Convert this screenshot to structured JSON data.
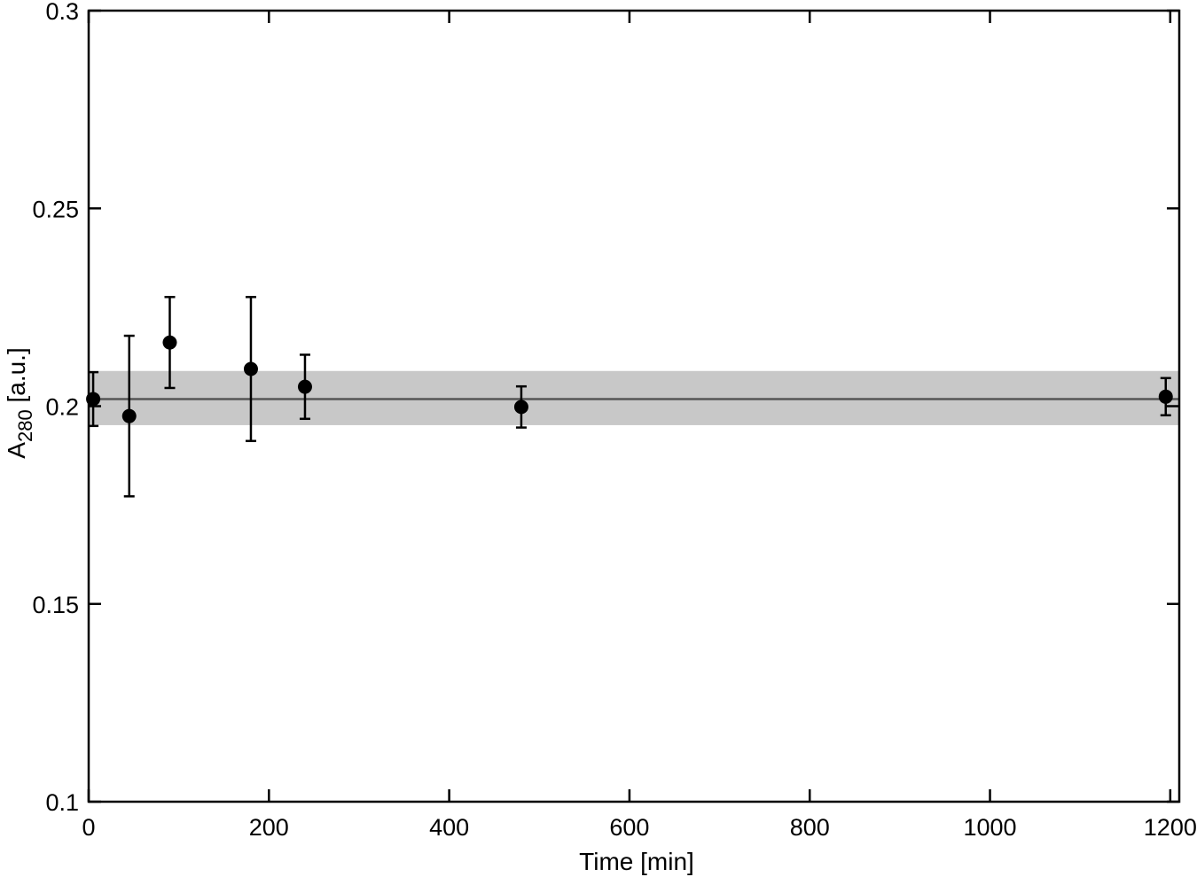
{
  "chart_data": {
    "type": "scatter",
    "title": "",
    "xlabel": "Time [min]",
    "ylabel_main": "A",
    "ylabel_sub": "280",
    "ylabel_unit": " [a.u.]",
    "xlim": [
      0,
      1210
    ],
    "ylim": [
      0.1,
      0.3
    ],
    "xticks": [
      0,
      200,
      400,
      600,
      800,
      1000,
      1200
    ],
    "xtick_labels": [
      "0",
      "200",
      "400",
      "600",
      "800",
      "1000",
      "1200"
    ],
    "yticks": [
      0.1,
      0.15,
      0.2,
      0.25,
      0.3
    ],
    "ytick_labels": [
      "0.1",
      "0.15",
      "0.2",
      "0.25",
      "0.3"
    ],
    "grid": false,
    "series": [
      {
        "points": [
          {
            "x": 5,
            "y": 0.2018,
            "err": 0.0068
          },
          {
            "x": 45,
            "y": 0.1975,
            "err": 0.0203
          },
          {
            "x": 90,
            "y": 0.2161,
            "err": 0.0115
          },
          {
            "x": 180,
            "y": 0.2094,
            "err": 0.0182
          },
          {
            "x": 240,
            "y": 0.2049,
            "err": 0.0081
          },
          {
            "x": 480,
            "y": 0.1998,
            "err": 0.0052
          },
          {
            "x": 1195,
            "y": 0.2024,
            "err": 0.0047
          }
        ]
      }
    ],
    "mean_line": {
      "y": 0.2018,
      "color": "#555555"
    },
    "band": {
      "low": 0.1952,
      "high": 0.2089,
      "color": "#c8c8c8"
    },
    "marker_color": "#000000"
  }
}
